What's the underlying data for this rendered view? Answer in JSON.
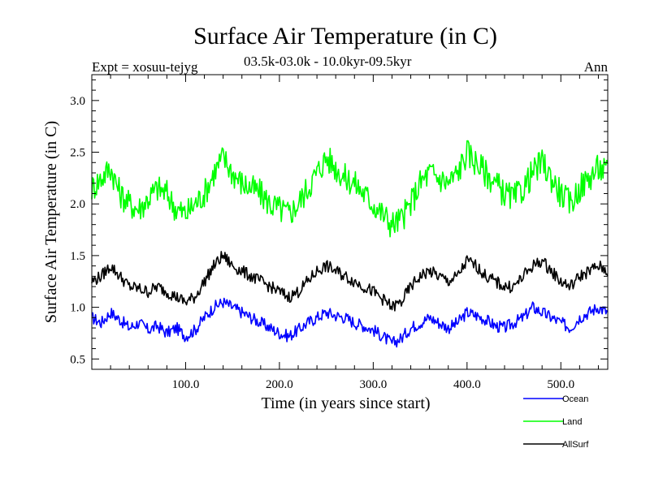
{
  "header": {
    "title": "Surface Air Temperature (in C)",
    "subtitle": "03.5k-03.0k - 10.0kyr-09.5kyr",
    "expt": "Expt = xosuu-tejyg",
    "season": "Ann"
  },
  "colors": {
    "ocean": "#0000ff",
    "land": "#00ff00",
    "allsurf": "#000000"
  },
  "chart_data": {
    "type": "line",
    "title": "Surface Air Temperature (in C)",
    "xlabel": "Time (in years since start)",
    "ylabel": "Surface Air Temperature (in C)",
    "xlim": [
      0,
      550
    ],
    "ylim": [
      0.4,
      3.25
    ],
    "xticks": [
      100,
      200,
      300,
      400,
      500
    ],
    "xtick_labels": [
      "100.0",
      "200.0",
      "300.0",
      "400.0",
      "500.0"
    ],
    "yticks": [
      0.5,
      1.0,
      1.5,
      2.0,
      2.5,
      3.0
    ],
    "ytick_labels": [
      "0.5",
      "1.0",
      "1.5",
      "2.0",
      "2.5",
      "3.0"
    ],
    "x": [
      0,
      10,
      20,
      30,
      40,
      50,
      60,
      70,
      80,
      90,
      100,
      110,
      120,
      130,
      140,
      150,
      160,
      170,
      180,
      190,
      200,
      210,
      220,
      230,
      240,
      250,
      260,
      270,
      280,
      290,
      300,
      310,
      320,
      330,
      340,
      350,
      360,
      370,
      380,
      390,
      400,
      410,
      420,
      430,
      440,
      450,
      460,
      470,
      480,
      490,
      500,
      510,
      520,
      530,
      540,
      550
    ],
    "series": [
      {
        "name": "Ocean",
        "color": "#0000ff",
        "values": [
          0.9,
          0.85,
          0.95,
          0.88,
          0.8,
          0.85,
          0.78,
          0.82,
          0.75,
          0.8,
          0.72,
          0.78,
          0.9,
          1.0,
          1.05,
          1.0,
          0.95,
          0.9,
          0.85,
          0.8,
          0.75,
          0.72,
          0.78,
          0.85,
          0.9,
          0.95,
          0.92,
          0.9,
          0.85,
          0.82,
          0.78,
          0.72,
          0.65,
          0.7,
          0.8,
          0.85,
          0.9,
          0.85,
          0.8,
          0.85,
          0.95,
          0.92,
          0.88,
          0.82,
          0.8,
          0.85,
          0.9,
          1.0,
          0.95,
          0.9,
          0.85,
          0.8,
          0.9,
          0.95,
          1.0,
          0.95
        ]
      },
      {
        "name": "Land",
        "color": "#00ff00",
        "values": [
          2.15,
          2.25,
          2.35,
          2.1,
          2.0,
          1.95,
          2.05,
          2.15,
          2.1,
          1.95,
          1.9,
          2.0,
          2.1,
          2.3,
          2.45,
          2.3,
          2.2,
          2.15,
          2.1,
          2.0,
          1.95,
          1.9,
          2.0,
          2.15,
          2.3,
          2.45,
          2.35,
          2.25,
          2.2,
          2.1,
          2.0,
          1.9,
          1.8,
          1.85,
          2.0,
          2.2,
          2.3,
          2.25,
          2.2,
          2.3,
          2.5,
          2.4,
          2.3,
          2.2,
          2.1,
          2.05,
          2.15,
          2.3,
          2.4,
          2.25,
          2.1,
          2.0,
          2.15,
          2.25,
          2.35,
          2.3
        ]
      },
      {
        "name": "AllSurf",
        "color": "#000000",
        "values": [
          1.25,
          1.3,
          1.4,
          1.3,
          1.2,
          1.18,
          1.15,
          1.2,
          1.15,
          1.1,
          1.05,
          1.1,
          1.25,
          1.4,
          1.5,
          1.4,
          1.35,
          1.3,
          1.25,
          1.2,
          1.15,
          1.1,
          1.15,
          1.25,
          1.35,
          1.4,
          1.35,
          1.3,
          1.25,
          1.2,
          1.15,
          1.08,
          1.0,
          1.05,
          1.2,
          1.3,
          1.35,
          1.3,
          1.25,
          1.3,
          1.45,
          1.4,
          1.3,
          1.25,
          1.2,
          1.2,
          1.3,
          1.4,
          1.45,
          1.35,
          1.25,
          1.2,
          1.3,
          1.35,
          1.4,
          1.35
        ]
      }
    ],
    "legend": [
      {
        "name": "Ocean",
        "color": "#0000ff"
      },
      {
        "name": "Land",
        "color": "#00ff00"
      },
      {
        "name": "AllSurf",
        "color": "#000000"
      }
    ]
  }
}
